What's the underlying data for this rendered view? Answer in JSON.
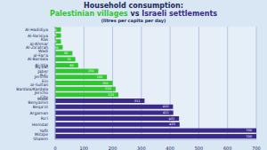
{
  "chart_data": {
    "type": "bar",
    "orientation": "horizontal",
    "title": "Household consumption: Palestinian villages vs Israeli settlements",
    "subtitle": "(litres per capita per day)",
    "categories": [
      "Al-Hadidiya",
      "Al-Farisiya",
      "Ras al-Ahmar",
      "Al-Za'atrah",
      "Wadi al-Far'a",
      "Al-Bardala",
      "Al-'Oja",
      "Aq'bat Jaber R.C.",
      "Jericho",
      "Ein al-Sultan",
      "Bardala/Kardala",
      "Jericho City",
      "Malei Benyamin",
      "Beqa'ot",
      "Argaman",
      "Ro'i",
      "Hemdat",
      "Yafit",
      "Mitzpe Shalem"
    ],
    "series": [
      {
        "name": "Palestinian villages",
        "color": "#2fc62f",
        "values": [
          20,
          20,
          20,
          26,
          60,
          70,
          80,
          150,
          180,
          200,
          210,
          220,
          null,
          null,
          null,
          null,
          null,
          null,
          null
        ]
      },
      {
        "name": "Israeli settlements",
        "color": "#3b2a8c",
        "values": [
          null,
          null,
          null,
          null,
          null,
          null,
          null,
          null,
          null,
          null,
          null,
          null,
          311,
          410,
          411,
          431,
          433,
          700,
          700
        ]
      }
    ],
    "xlim": [
      0,
      700
    ],
    "xticks": [
      0,
      100,
      200,
      300,
      400,
      500,
      600,
      700
    ],
    "grid": true,
    "data_labels": true
  }
}
